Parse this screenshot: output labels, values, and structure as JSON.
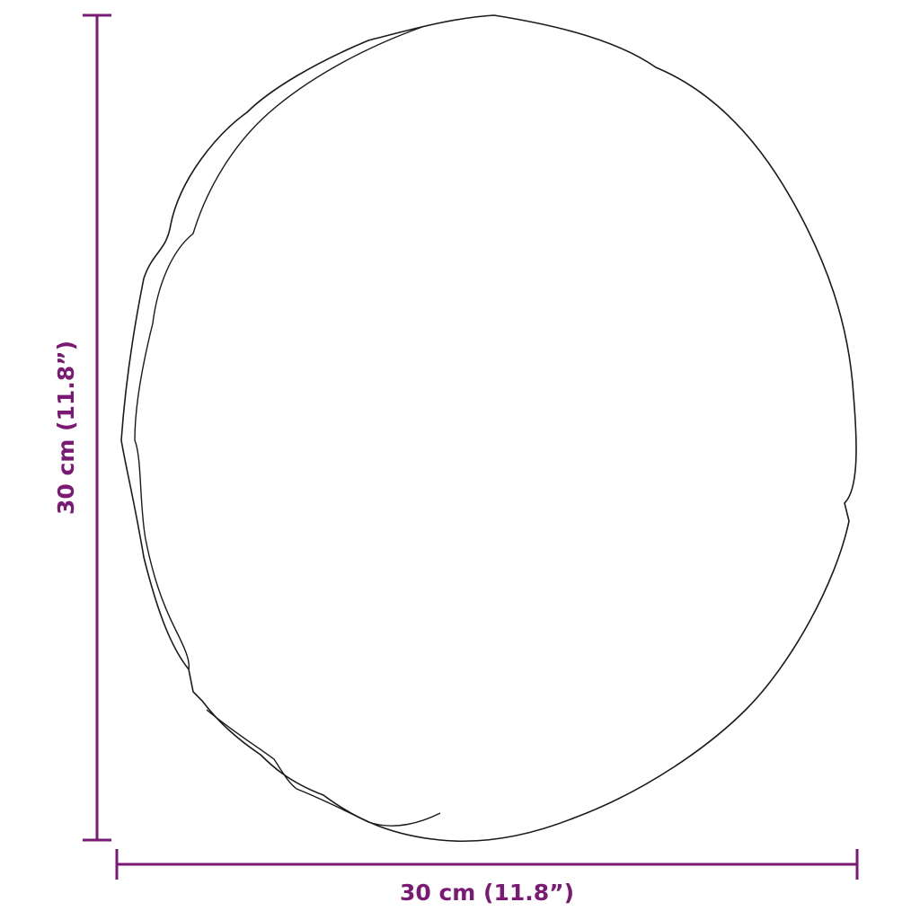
{
  "dimensions": {
    "width_label": "30 cm (11.8”)",
    "height_label": "30 cm (11.8”)"
  },
  "colors": {
    "dimension": "#7b1a74",
    "outline": "#1a1a1a"
  }
}
